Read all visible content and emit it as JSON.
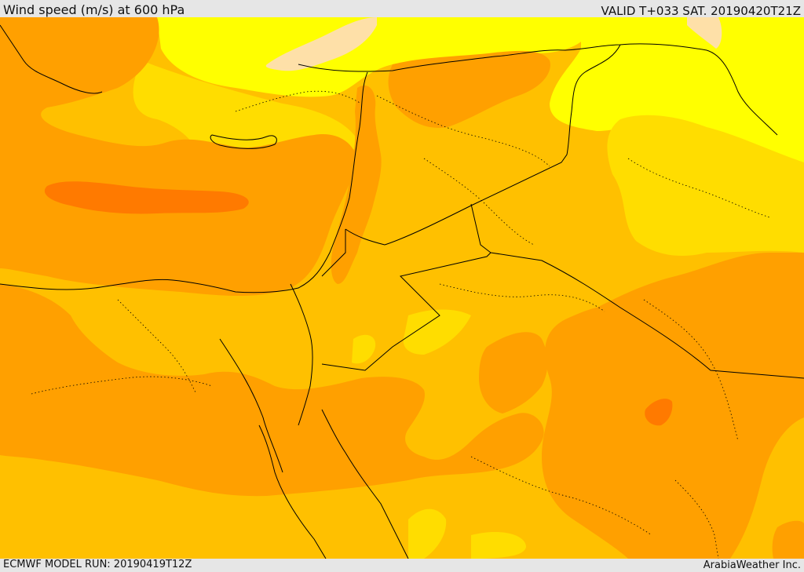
{
  "header": {
    "title": "Wind speed (m/s) at 600 hPa",
    "valid_time": "VALID T+033 SAT. 20190420T21Z"
  },
  "footer": {
    "model_run": "ECMWF MODEL RUN: 20190419T12Z",
    "credit": "ArabiaWeather Inc."
  },
  "map": {
    "region": "Eastern Mediterranean and Middle East",
    "colors": {
      "band_lowest": "#fee0a8",
      "band_low": "#ffff00",
      "band_mid_low": "#ffdd00",
      "band_mid": "#ffc000",
      "band_mid_high": "#ffa000",
      "band_high": "#ff7a00",
      "border": "#000000"
    }
  }
}
